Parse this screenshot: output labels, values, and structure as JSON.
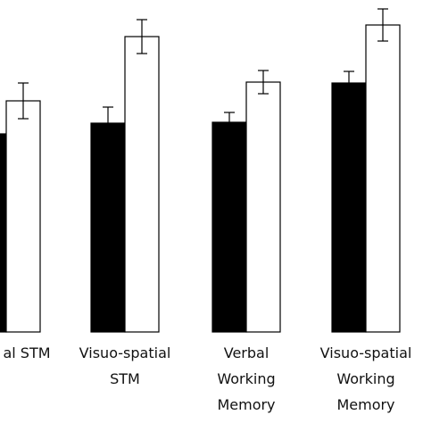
{
  "chart_data": {
    "type": "bar",
    "categories": [
      [
        "al STM"
      ],
      [
        "Visuo-spatial",
        "STM"
      ],
      [
        "Verbal",
        "Working",
        "Memory"
      ],
      [
        "Visuo-spatial",
        "Working",
        "Memory"
      ]
    ],
    "series": [
      {
        "color": "#000000",
        "values": [
          222,
          234,
          235,
          279
        ],
        "errors": [
          null,
          18,
          11,
          13
        ]
      },
      {
        "color": "#ffffff",
        "values": [
          259,
          331,
          280,
          344
        ],
        "errors": [
          20,
          19,
          13,
          18
        ]
      }
    ],
    "ylim": [
      0,
      372
    ]
  }
}
